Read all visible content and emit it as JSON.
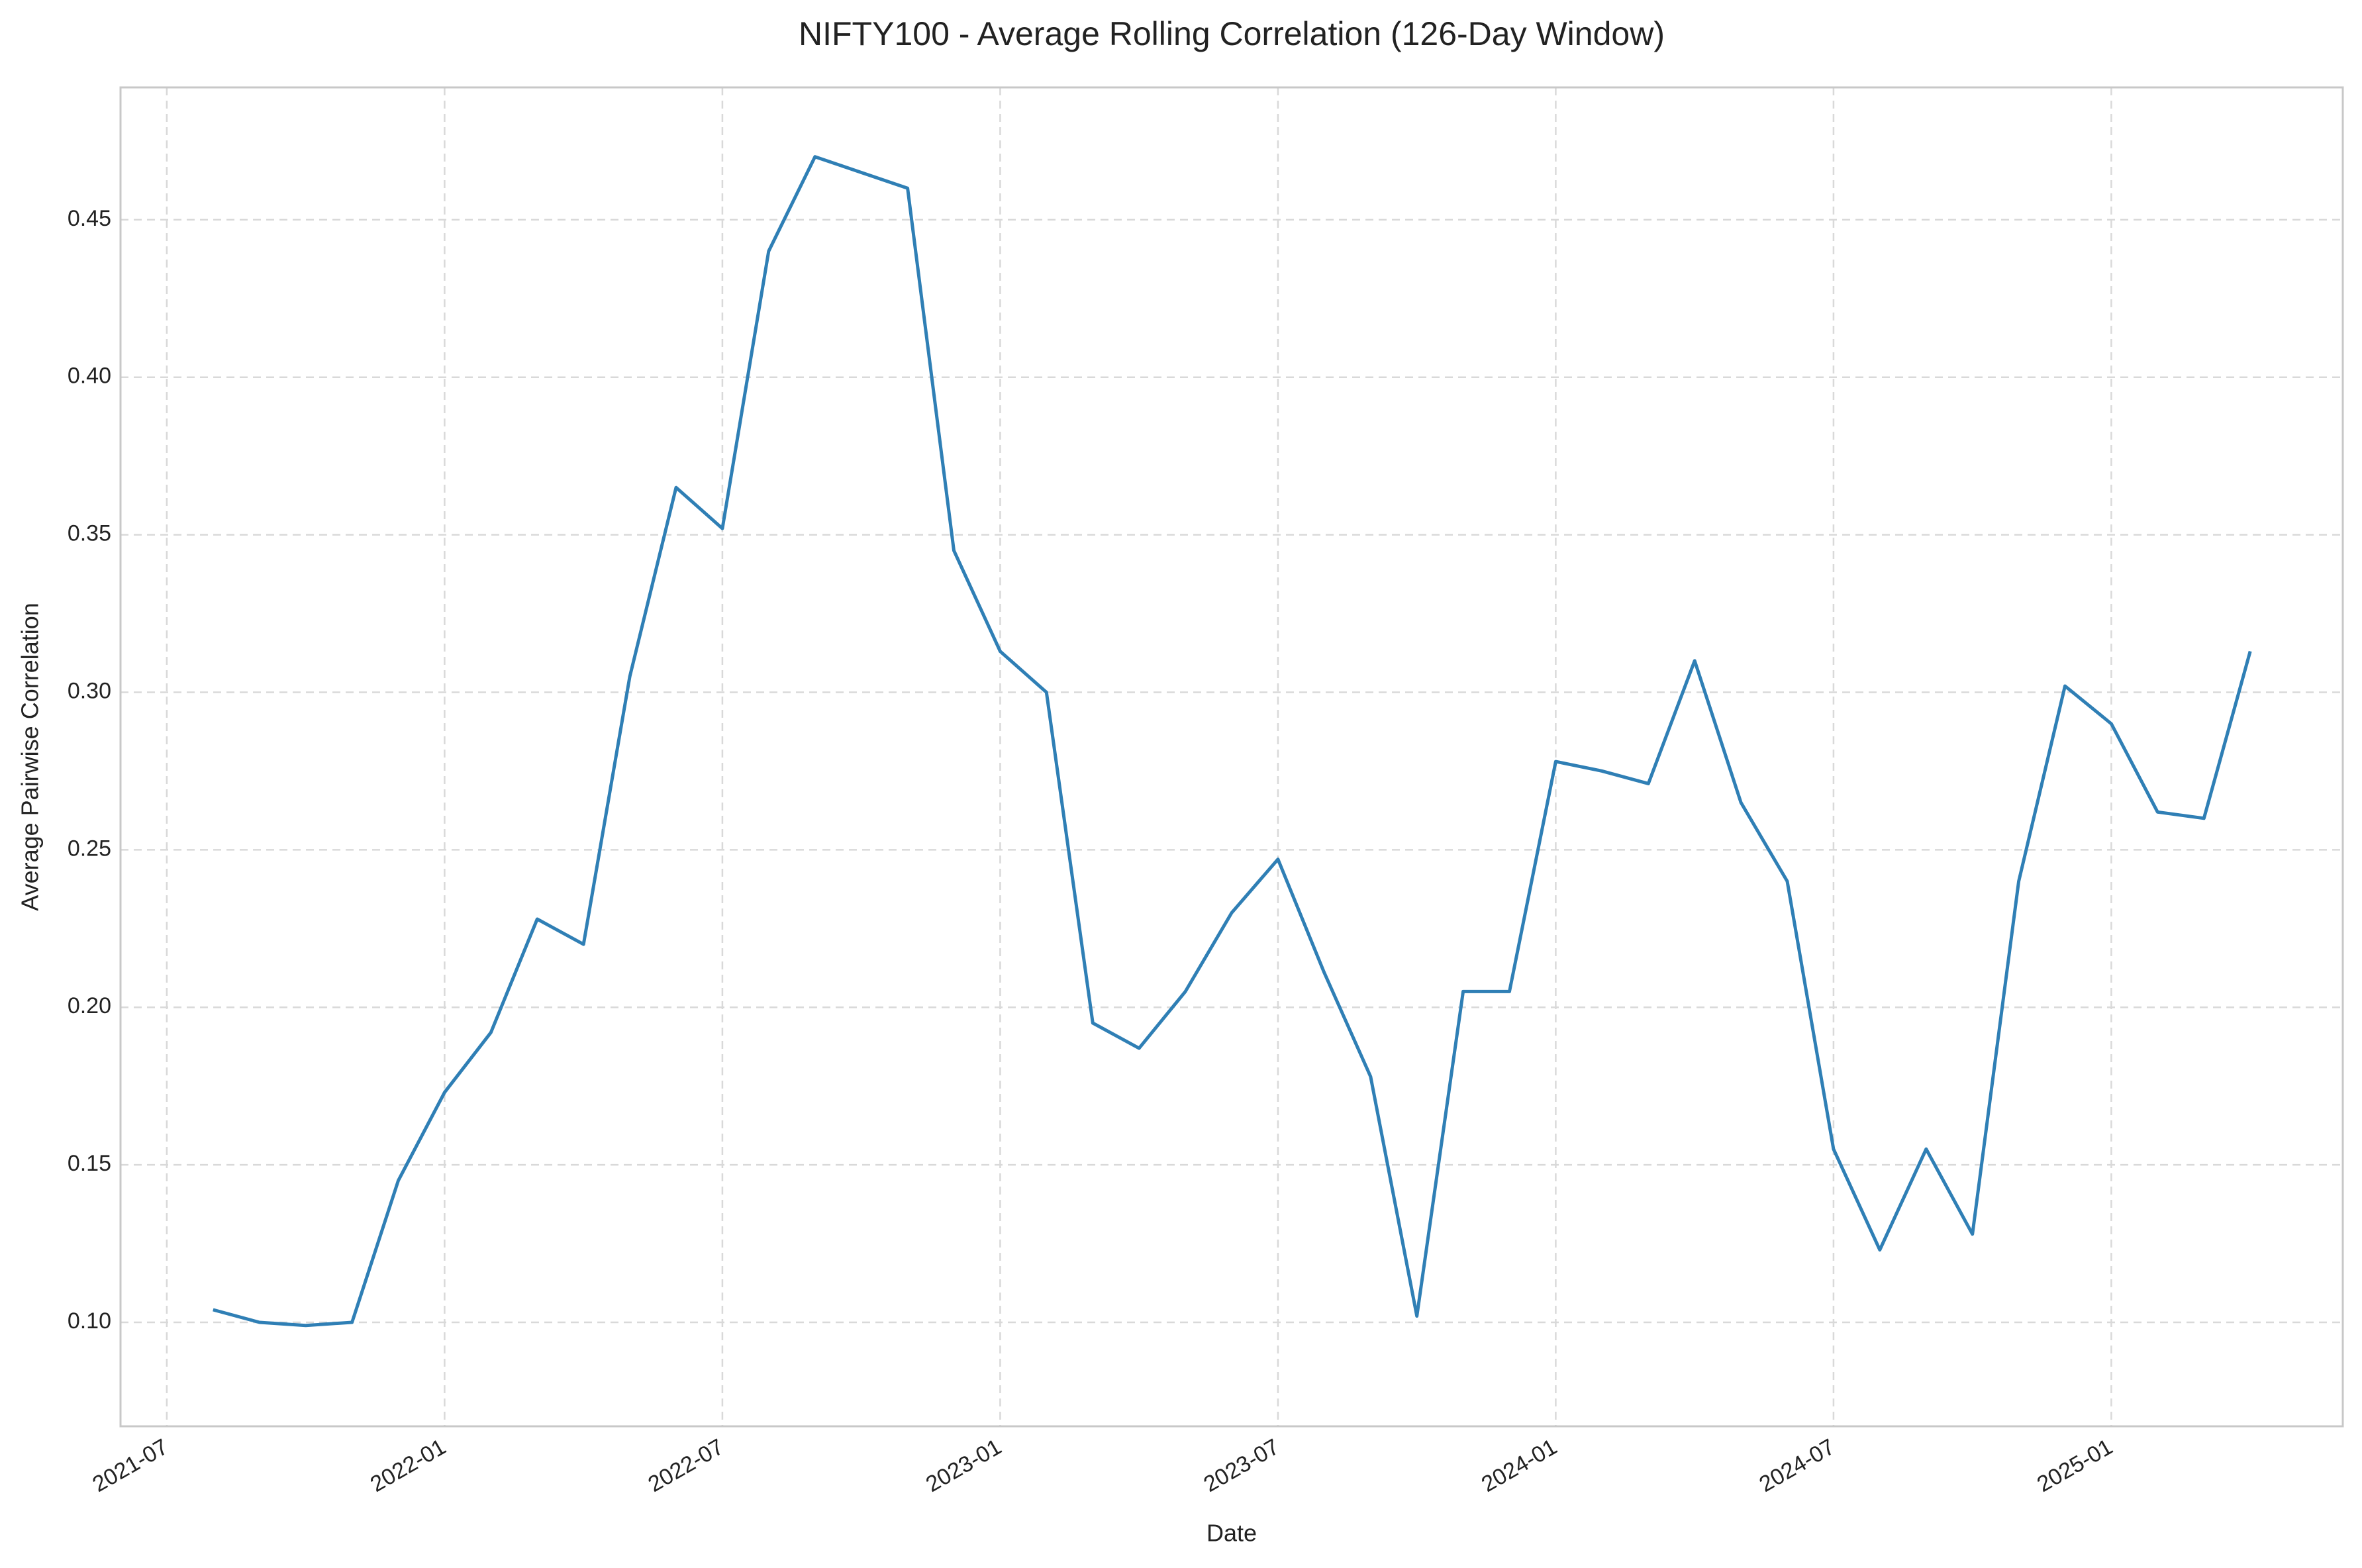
{
  "chart_data": {
    "type": "line",
    "title": "NIFTY100 - Average Rolling Correlation (126-Day Window)",
    "x_label": "Date",
    "y_label": "Average Pairwise Correlation",
    "x": [
      "2021-08",
      "2021-09",
      "2021-10",
      "2021-11",
      "2021-12",
      "2022-01",
      "2022-02",
      "2022-03",
      "2022-04",
      "2022-05",
      "2022-06",
      "2022-07",
      "2022-08",
      "2022-09",
      "2022-10",
      "2022-11",
      "2022-12",
      "2023-01",
      "2023-02",
      "2023-03",
      "2023-04",
      "2023-05",
      "2023-06",
      "2023-07",
      "2023-08",
      "2023-09",
      "2023-10",
      "2023-11",
      "2023-12",
      "2024-01",
      "2024-02",
      "2024-03",
      "2024-04",
      "2024-05",
      "2024-06",
      "2024-07",
      "2024-08",
      "2024-09",
      "2024-10",
      "2024-11",
      "2024-12",
      "2025-01",
      "2025-02",
      "2025-03",
      "2025-04"
    ],
    "values": [
      0.104,
      0.1,
      0.099,
      0.1,
      0.145,
      0.173,
      0.192,
      0.228,
      0.22,
      0.305,
      0.365,
      0.352,
      0.44,
      0.47,
      0.465,
      0.46,
      0.345,
      0.313,
      0.3,
      0.195,
      0.187,
      0.205,
      0.23,
      0.247,
      0.211,
      0.178,
      0.102,
      0.205,
      0.205,
      0.278,
      0.275,
      0.271,
      0.31,
      0.265,
      0.24,
      0.155,
      0.123,
      0.155,
      0.128,
      0.24,
      0.302,
      0.29,
      0.262,
      0.26,
      0.313
    ],
    "color": "#2f7fb5",
    "xlim": [
      "2021-06",
      "2025-06"
    ],
    "xticks": [
      "2021-07",
      "2022-01",
      "2022-07",
      "2023-01",
      "2023-07",
      "2024-01",
      "2024-07",
      "2025-01"
    ],
    "ylim": [
      0.067,
      0.492
    ],
    "yticks": [
      {
        "value": 0.1,
        "label": "0.10"
      },
      0.15,
      {
        "value": 0.2,
        "label": "0.20"
      },
      0.25,
      {
        "value": 0.3,
        "label": "0.30"
      },
      0.35,
      {
        "value": 0.4,
        "label": "0.40"
      },
      0.45
    ],
    "grid": true
  }
}
